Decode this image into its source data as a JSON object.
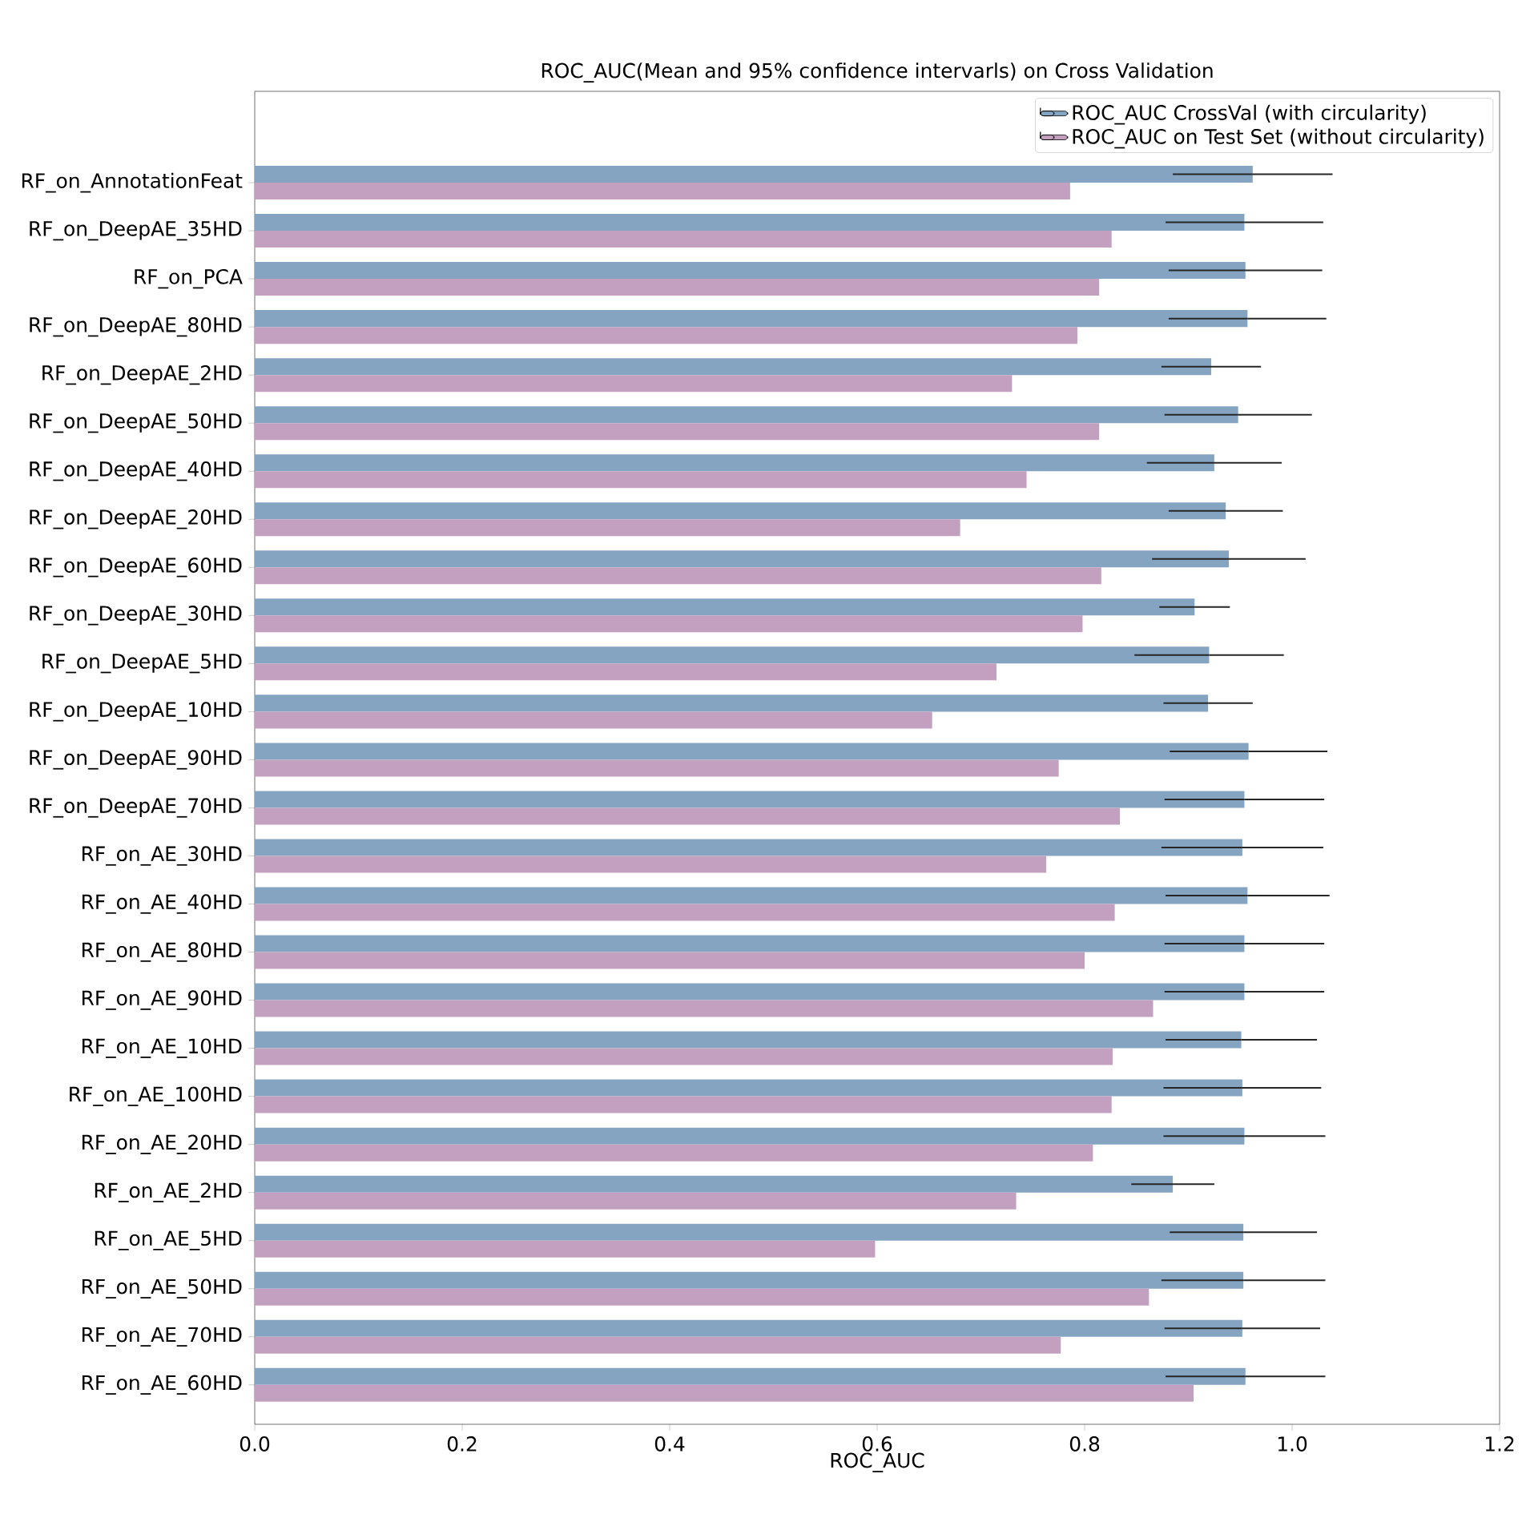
{
  "chart_data": {
    "type": "bar",
    "orientation": "horizontal",
    "title": "ROC_AUC(Mean and 95% confidence intervarls) on Cross Validation",
    "xlabel": "ROC_AUC",
    "categories": [
      "RF_on_AnnotationFeat",
      "RF_on_DeepAE_35HD",
      "RF_on_PCA",
      "RF_on_DeepAE_80HD",
      "RF_on_DeepAE_2HD",
      "RF_on_DeepAE_50HD",
      "RF_on_DeepAE_40HD",
      "RF_on_DeepAE_20HD",
      "RF_on_DeepAE_60HD",
      "RF_on_DeepAE_30HD",
      "RF_on_DeepAE_5HD",
      "RF_on_DeepAE_10HD",
      "RF_on_DeepAE_90HD",
      "RF_on_DeepAE_70HD",
      "RF_on_AE_30HD",
      "RF_on_AE_40HD",
      "RF_on_AE_80HD",
      "RF_on_AE_90HD",
      "RF_on_AE_10HD",
      "RF_on_AE_100HD",
      "RF_on_AE_20HD",
      "RF_on_AE_2HD",
      "RF_on_AE_5HD",
      "RF_on_AE_50HD",
      "RF_on_AE_70HD",
      "RF_on_AE_60HD"
    ],
    "series": [
      {
        "name": "ROC_AUC CrossVal (with circularity)",
        "color": "#84a4c2",
        "values": [
          0.962,
          0.954,
          0.955,
          0.957,
          0.922,
          0.948,
          0.925,
          0.936,
          0.939,
          0.906,
          0.92,
          0.919,
          0.958,
          0.954,
          0.952,
          0.957,
          0.954,
          0.954,
          0.951,
          0.952,
          0.954,
          0.885,
          0.953,
          0.953,
          0.952,
          0.955
        ],
        "errors": [
          0.077,
          0.076,
          0.074,
          0.076,
          0.048,
          0.071,
          0.065,
          0.055,
          0.074,
          0.034,
          0.072,
          0.043,
          0.076,
          0.077,
          0.078,
          0.079,
          0.077,
          0.077,
          0.073,
          0.076,
          0.078,
          0.04,
          0.071,
          0.079,
          0.075,
          0.077
        ]
      },
      {
        "name": "ROC_AUC on Test Set (without circularity)",
        "color": "#c4a0c0",
        "values": [
          0.786,
          0.826,
          0.814,
          0.793,
          0.73,
          0.814,
          0.744,
          0.68,
          0.816,
          0.798,
          0.715,
          0.653,
          0.775,
          0.834,
          0.763,
          0.829,
          0.8,
          0.866,
          0.827,
          0.826,
          0.808,
          0.734,
          0.598,
          0.862,
          0.777,
          0.905
        ]
      }
    ],
    "xlim": [
      0,
      1.2
    ],
    "xticks": [
      {
        "value": 0,
        "label": "0.0"
      },
      {
        "value": 0.2,
        "label": "0.2"
      },
      {
        "value": 0.4,
        "label": "0.4"
      },
      {
        "value": 0.6,
        "label": "0.6"
      },
      {
        "value": 0.8,
        "label": "0.8"
      },
      {
        "value": 1.0,
        "label": "1.0"
      },
      {
        "value": 1.2,
        "label": "1.2"
      }
    ],
    "legend": "top right"
  }
}
